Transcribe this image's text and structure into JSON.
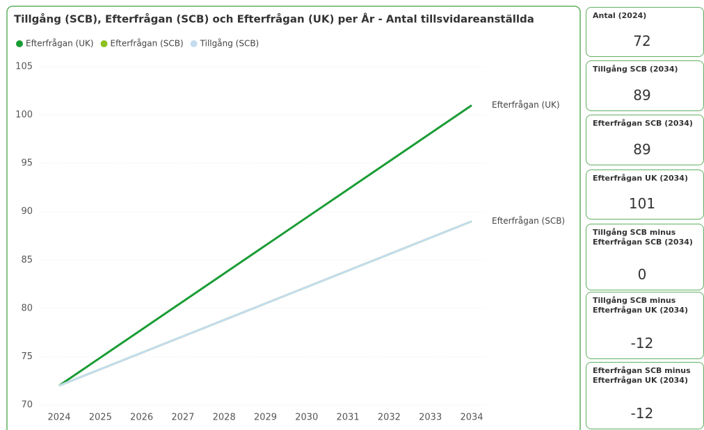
{
  "chart_data": {
    "type": "line",
    "title": "Tillgång (SCB), Efterfrågan (SCB) och Efterfrågan (UK) per År - Antal tillsvidareanställda",
    "x": [
      2024,
      2025,
      2026,
      2027,
      2028,
      2029,
      2030,
      2031,
      2032,
      2033,
      2034
    ],
    "xlim": [
      2024,
      2034
    ],
    "xticks": [
      2024,
      2025,
      2026,
      2027,
      2028,
      2029,
      2030,
      2031,
      2032,
      2033,
      2034
    ],
    "ylim": [
      70,
      105
    ],
    "yticks": [
      70,
      75,
      80,
      85,
      90,
      95,
      100,
      105
    ],
    "grid": true,
    "legend": "top-left",
    "series": [
      {
        "name": "Efterfrågan (UK)",
        "color": "#1a9c35",
        "values": [
          72,
          74.9,
          77.8,
          80.7,
          83.6,
          86.5,
          89.4,
          92.3,
          95.2,
          98.1,
          101
        ]
      },
      {
        "name": "Efterfrågan (SCB)",
        "color": "#8cc21f",
        "values": [
          72,
          73.7,
          75.4,
          77.1,
          78.8,
          80.5,
          82.2,
          83.9,
          85.6,
          87.3,
          89
        ]
      },
      {
        "name": "Tillgång (SCB)",
        "color": "#c4dcee",
        "values": [
          72,
          73.7,
          75.4,
          77.1,
          78.8,
          80.5,
          82.2,
          83.9,
          85.6,
          87.3,
          89
        ]
      }
    ]
  },
  "cards": [
    {
      "title": "Antal (2024)",
      "value": "72"
    },
    {
      "title": "Tillgång SCB (2034)",
      "value": "89"
    },
    {
      "title": "Efterfrågan SCB (2034)",
      "value": "89"
    },
    {
      "title": "Efterfrågan UK (2034)",
      "value": "101"
    },
    {
      "title": "Tillgång SCB minus Efterfrågan SCB (2034)",
      "value": "0"
    },
    {
      "title": "Tillgång SCB minus Efterfrågan UK (2034)",
      "value": "-12"
    },
    {
      "title": "Efterfrågan SCB minus Efterfrågan UK (2034)",
      "value": "-12"
    }
  ]
}
